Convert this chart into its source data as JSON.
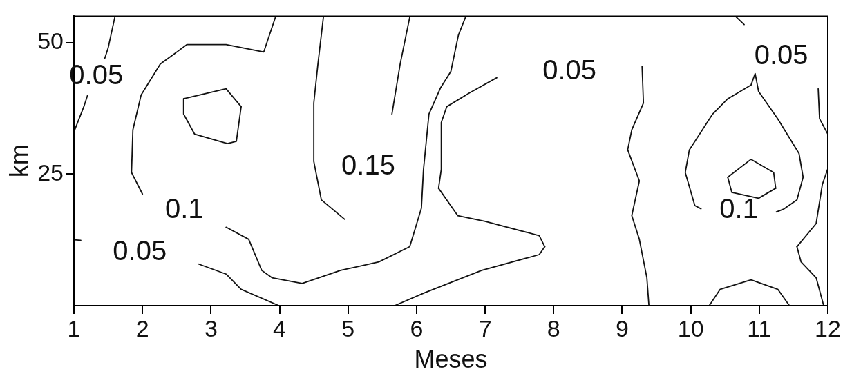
{
  "chart_data": {
    "type": "line",
    "xlabel": "Meses",
    "ylabel": "km",
    "marker": "none",
    "line_style": "solid",
    "xlim": [
      1,
      12
    ],
    "xticks": [
      1,
      2,
      3,
      4,
      5,
      6,
      7,
      8,
      9,
      10,
      11,
      12
    ],
    "ylim": [
      0,
      55
    ],
    "yticks": [
      25,
      50
    ],
    "series": [
      {
        "name": "0.05",
        "color": "#111111",
        "x": [
          1.6,
          1.5,
          1.45,
          1.3,
          1.2,
          1.15,
          1.0
        ],
        "values": [
          55,
          49,
          47,
          null,
          40,
          38,
          33
        ]
      },
      {
        "color": "#111111",
        "x": [
          3.94,
          3.77,
          3.22,
          2.65,
          2.26,
          1.98,
          1.86,
          1.84
        ],
        "values": [
          54.8,
          48.2,
          49.6,
          49.6,
          45.9,
          40.0,
          33.4,
          25.3
        ]
      },
      {
        "name": "0.1",
        "color": "#111111",
        "x": [
          1.84,
          2.0,
          2.6,
          3.22,
          3.55,
          3.74,
          3.89,
          4.33,
          4.89,
          5.45,
          5.9,
          6.07,
          6.1,
          6.18,
          6.35,
          6.5,
          6.61,
          6.72
        ],
        "values": [
          25.3,
          21.2,
          null,
          14.9,
          12.6,
          6.7,
          5.3,
          4.2,
          6.7,
          8.3,
          11.2,
          18.5,
          25.8,
          36.4,
          41.4,
          44.5,
          51.4,
          55
        ]
      },
      {
        "color": "#111111",
        "x": [
          2.6,
          3.22,
          3.44
        ],
        "values": [
          39.3,
          41.2,
          37.8
        ]
      },
      {
        "color": "#111111",
        "x": [
          3.44,
          3.37,
          3.24,
          2.76,
          2.6,
          2.6
        ],
        "values": [
          37.8,
          31.2,
          30.8,
          32.6,
          36.4,
          39.3
        ]
      },
      {
        "name": "0.15",
        "color": "#111111",
        "x": [
          4.64,
          4.56,
          4.5,
          4.5,
          4.61,
          4.95,
          5.3,
          5.64,
          5.76,
          5.9
        ],
        "values": [
          54.8,
          45.9,
          38.5,
          27.4,
          20.1,
          16.4,
          null,
          36.4,
          45.9,
          54.8
        ]
      },
      {
        "name": "0.05",
        "color": "#111111",
        "x": [
          1.0,
          1.1,
          2.0,
          2.82,
          3.22,
          3.44,
          3.99
        ],
        "values": [
          12.5,
          12.4,
          null,
          7.9,
          6.0,
          3.1,
          0
        ]
      },
      {
        "color": "#111111",
        "x": [
          5.68,
          6.11,
          6.95,
          7.79,
          7.87
        ],
        "values": [
          0,
          2.4,
          6.7,
          9.7,
          11.2
        ]
      },
      {
        "color": "#111111",
        "x": [
          7.87,
          7.79,
          7.0,
          6.6,
          6.32
        ],
        "values": [
          11.2,
          13.3,
          16.0,
          17.1,
          22.3
        ]
      },
      {
        "name": "0.05",
        "color": "#111111",
        "x": [
          6.32,
          6.36,
          6.36,
          6.44,
          6.77,
          7.17,
          8.4,
          9.29,
          9.31,
          9.14,
          9.08,
          9.25,
          9.14,
          9.25,
          9.36,
          9.39
        ],
        "values": [
          22.3,
          25.9,
          34.8,
          37.8,
          40.4,
          43.3,
          null,
          45.5,
          38.5,
          33.4,
          29.6,
          23.7,
          17.1,
          12.6,
          5.3,
          0
        ]
      },
      {
        "name": "0.1",
        "color": "#111111",
        "x": [
          11.25,
          11.35,
          11.55,
          11.64,
          11.58,
          11.27,
          10.99,
          10.94,
          10.88,
          10.54,
          10.32,
          9.98,
          9.92,
          10.06,
          10.15
        ],
        "values": [
          17.8,
          18.3,
          20.1,
          24.4,
          28.9,
          35.5,
          40.7,
          44.1,
          41.9,
          39.3,
          36.4,
          29.6,
          25.3,
          19.0,
          18.4
        ]
      },
      {
        "color": "#111111",
        "x": [
          10.54,
          10.88,
          11.21,
          11.24
        ],
        "values": [
          24.4,
          27.8,
          25.3,
          22.3
        ]
      },
      {
        "color": "#111111",
        "x": [
          11.24,
          10.99,
          10.6,
          10.54
        ],
        "values": [
          22.3,
          20.4,
          21.5,
          24.4
        ]
      },
      {
        "color": "#111111",
        "x": [
          10.27,
          10.43,
          10.88,
          11.27,
          11.44
        ],
        "values": [
          0,
          3.1,
          4.9,
          3.1,
          0
        ]
      },
      {
        "name": "0.05",
        "color": "#111111",
        "x": [
          10.65,
          10.78,
          11.3,
          11.86,
          11.88,
          12.0
        ],
        "values": [
          55,
          53.4,
          null,
          41.2,
          35.5,
          32.6
        ]
      },
      {
        "color": "#111111",
        "x": [
          12.0,
          11.92,
          11.83,
          11.55
        ],
        "values": [
          26.0,
          23.0,
          15.6,
          11.2
        ]
      },
      {
        "color": "#111111",
        "x": [
          11.55,
          11.61,
          11.83,
          11.94
        ],
        "values": [
          11.2,
          8.3,
          5.3,
          0
        ]
      }
    ]
  }
}
